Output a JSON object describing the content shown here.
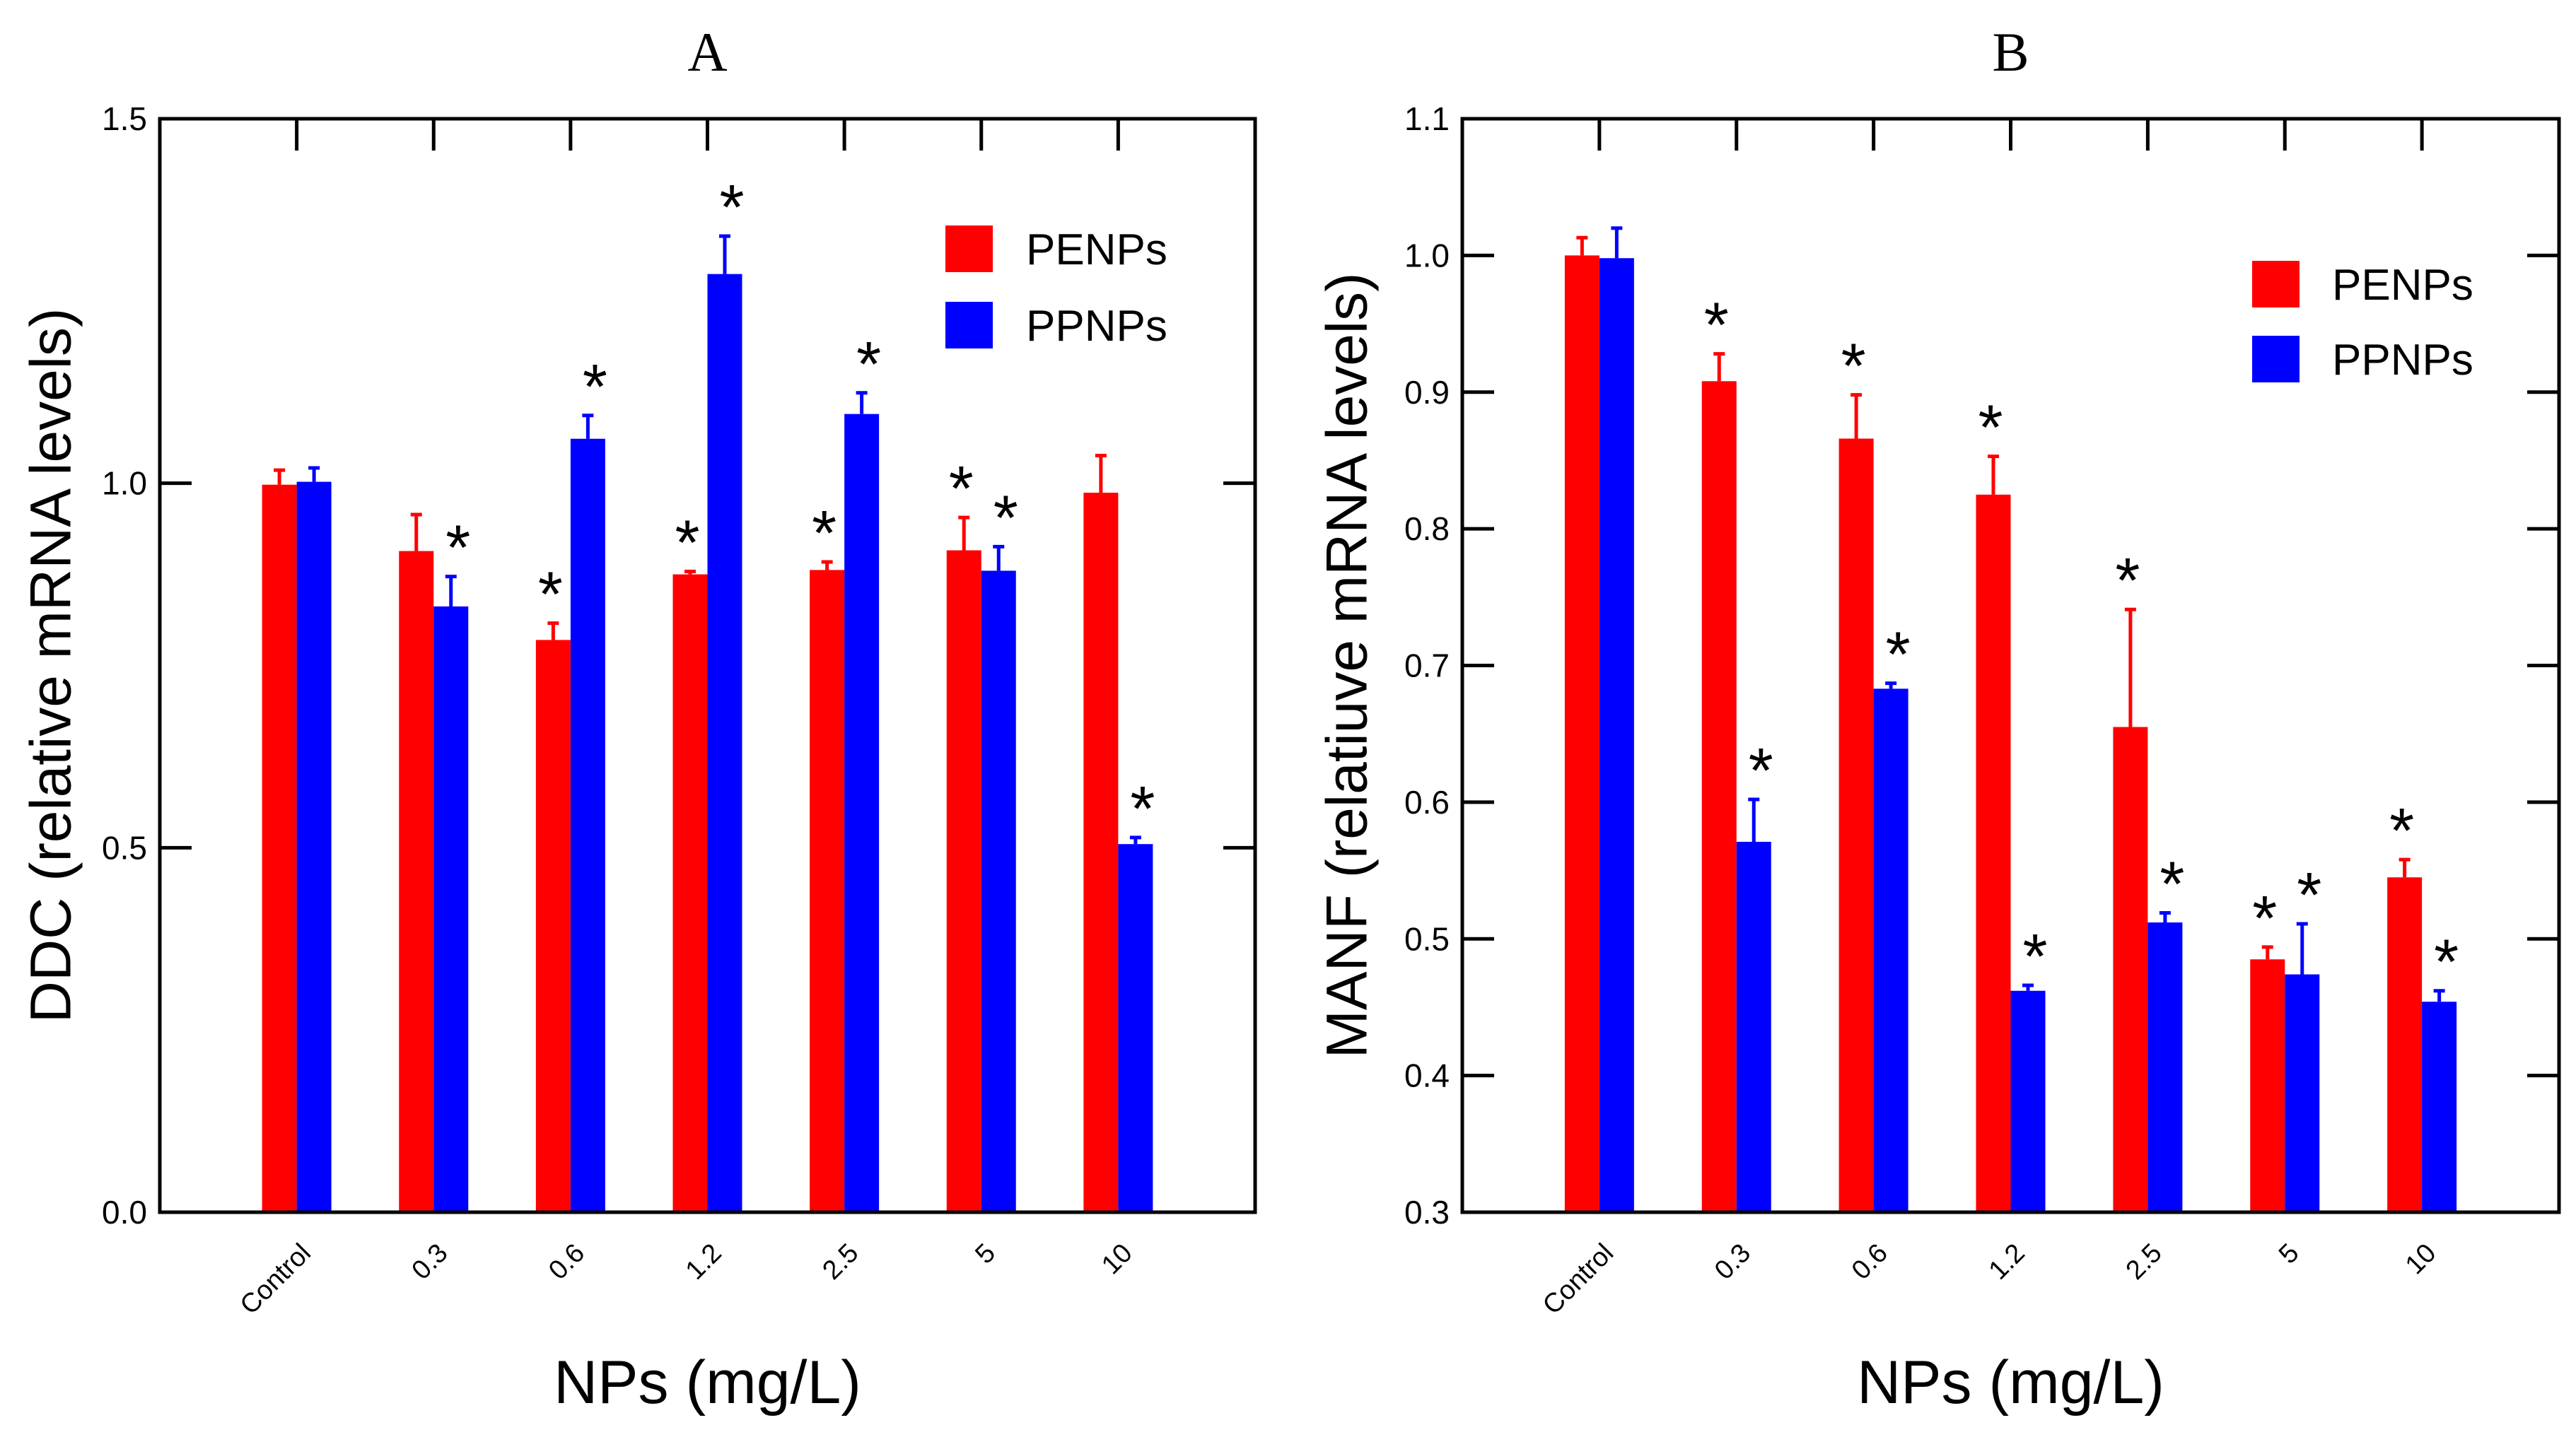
{
  "colors": {
    "PENPs": "#ff0000",
    "PPNPs": "#0000ff",
    "axis": "#000000"
  },
  "chart_data": [
    {
      "type": "bar",
      "title": "A",
      "xlabel": "NPs (mg/L)",
      "ylabel": "DDC (relative mRNA levels)",
      "ylim": [
        0,
        1.5
      ],
      "yticks": [
        "0.0",
        "0.5",
        "1.0",
        "1.5"
      ],
      "ytick_values": [
        0,
        0.5,
        1.0,
        1.5
      ],
      "categories": [
        "Control",
        "0.3",
        "0.6",
        "1.2",
        "2.5",
        "5",
        "10"
      ],
      "legend_position": "top-right",
      "grid": false,
      "series": [
        {
          "name": "PENPs",
          "values": [
            0.998,
            0.907,
            0.785,
            0.875,
            0.881,
            0.908,
            0.987
          ],
          "errors": [
            0.02,
            0.05,
            0.023,
            0.004,
            0.011,
            0.045,
            0.051
          ],
          "significant": [
            false,
            false,
            true,
            true,
            true,
            true,
            false
          ]
        },
        {
          "name": "PPNPs",
          "values": [
            1.002,
            0.831,
            1.061,
            1.287,
            1.095,
            0.88,
            0.505
          ],
          "errors": [
            0.019,
            0.041,
            0.032,
            0.052,
            0.029,
            0.033,
            0.009
          ],
          "significant": [
            false,
            true,
            true,
            true,
            true,
            true,
            true
          ]
        }
      ],
      "annotation": "*"
    },
    {
      "type": "bar",
      "title": "B",
      "xlabel": "NPs (mg/L)",
      "ylabel": "MANF (relatiuve mRNA levels)",
      "ylim": [
        0.3,
        1.1
      ],
      "yticks": [
        "0.3",
        "0.4",
        "0.5",
        "0.6",
        "0.7",
        "0.8",
        "0.9",
        "1.0",
        "1.1"
      ],
      "ytick_values": [
        0.3,
        0.4,
        0.5,
        0.6,
        0.7,
        0.8,
        0.9,
        1.0,
        1.1
      ],
      "categories": [
        "Control",
        "0.3",
        "0.6",
        "1.2",
        "2.5",
        "5",
        "10"
      ],
      "legend_position": "top-right",
      "grid": false,
      "series": [
        {
          "name": "PENPs",
          "values": [
            1.0,
            0.908,
            0.866,
            0.825,
            0.655,
            0.485,
            0.545
          ],
          "errors": [
            0.013,
            0.02,
            0.032,
            0.028,
            0.086,
            0.009,
            0.013
          ],
          "significant": [
            false,
            true,
            true,
            true,
            true,
            true,
            true
          ]
        },
        {
          "name": "PPNPs",
          "values": [
            0.998,
            0.571,
            0.683,
            0.462,
            0.512,
            0.474,
            0.454
          ],
          "errors": [
            0.022,
            0.031,
            0.004,
            0.004,
            0.007,
            0.037,
            0.008
          ],
          "significant": [
            false,
            true,
            true,
            true,
            true,
            true,
            true
          ]
        }
      ],
      "annotation": "*"
    }
  ]
}
